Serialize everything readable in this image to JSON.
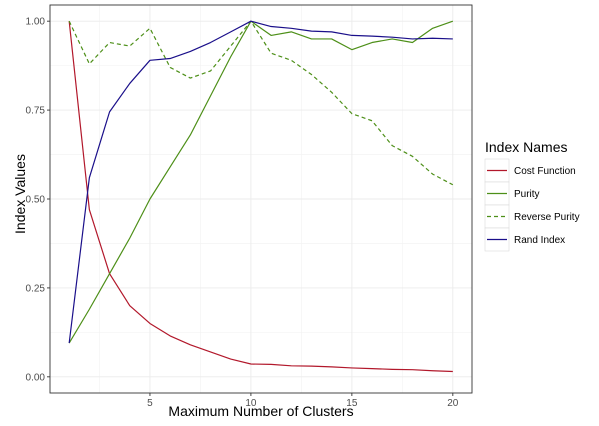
{
  "chart_data": {
    "type": "line",
    "title": "",
    "xlabel": "Maximum Number of Clusters",
    "ylabel": "Index Values",
    "xlim": [
      0.05,
      20.95
    ],
    "ylim": [
      -0.0455,
      1.0455
    ],
    "x_ticks": [
      5,
      10,
      15,
      20
    ],
    "x_tick_labels": [
      "5",
      "10",
      "15",
      "20"
    ],
    "y_ticks": [
      0,
      0.25,
      0.5,
      0.75,
      1.0
    ],
    "y_tick_labels": [
      "0.00",
      "0.25",
      "0.50",
      "0.75",
      "1.00"
    ],
    "grid": true,
    "legend": {
      "title": "Index Names",
      "position": "right"
    },
    "x": [
      1,
      2,
      3,
      4,
      5,
      6,
      7,
      8,
      9,
      10,
      11,
      12,
      13,
      14,
      15,
      16,
      17,
      18,
      19,
      20
    ],
    "series": [
      {
        "name": "Cost Function",
        "color": "#b2182b",
        "linetype": "solid",
        "values": [
          1.0,
          0.47,
          0.29,
          0.2,
          0.15,
          0.115,
          0.09,
          0.07,
          0.05,
          0.036,
          0.035,
          0.031,
          0.03,
          0.028,
          0.025,
          0.023,
          0.021,
          0.02,
          0.017,
          0.015
        ]
      },
      {
        "name": "Purity",
        "color": "#4d8f18",
        "linetype": "solid",
        "values": [
          0.095,
          0.19,
          0.29,
          0.39,
          0.5,
          0.59,
          0.68,
          0.79,
          0.9,
          1.0,
          0.96,
          0.97,
          0.95,
          0.95,
          0.92,
          0.94,
          0.95,
          0.94,
          0.98,
          1.0
        ]
      },
      {
        "name": "Reverse Purity",
        "color": "#4d8f18",
        "linetype": "dashed",
        "values": [
          1.0,
          0.88,
          0.94,
          0.93,
          0.98,
          0.87,
          0.84,
          0.86,
          0.93,
          1.0,
          0.91,
          0.89,
          0.85,
          0.8,
          0.74,
          0.72,
          0.65,
          0.62,
          0.57,
          0.54
        ]
      },
      {
        "name": "Rand Index",
        "color": "#1a0f8a",
        "linetype": "solid",
        "values": [
          0.095,
          0.56,
          0.745,
          0.825,
          0.89,
          0.895,
          0.915,
          0.94,
          0.97,
          1.0,
          0.985,
          0.98,
          0.972,
          0.97,
          0.96,
          0.958,
          0.955,
          0.95,
          0.952,
          0.95
        ]
      }
    ]
  }
}
